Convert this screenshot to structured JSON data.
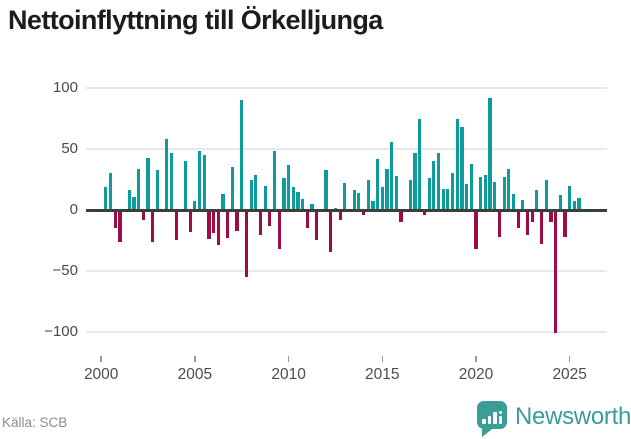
{
  "title": "Nettoinflyttning till Örkelljunga",
  "source": "Källa: SCB",
  "brand": {
    "name": "Newsworthy"
  },
  "colors": {
    "positive": "#0d9b9b",
    "negative": "#9e0c46",
    "axis": "#3d3d3d",
    "grid": "#e9e9e9",
    "brand_teal": "#3b9c98"
  },
  "chart_data": {
    "type": "bar",
    "title": "Nettoinflyttning till Örkelljunga",
    "xlabel": "",
    "ylabel": "",
    "start_quarter": "2000-Q1",
    "frequency": "quarterly",
    "ylim": [
      -110,
      105
    ],
    "grid": true,
    "y_ticks": [
      {
        "value": 100,
        "label": "100"
      },
      {
        "value": 50,
        "label": "50"
      },
      {
        "value": 0,
        "label": "0"
      },
      {
        "value": -50,
        "label": "−50"
      },
      {
        "value": -100,
        "label": "−100"
      }
    ],
    "x_ticks": [
      "2000",
      "2005",
      "2010",
      "2015",
      "2020",
      "2025"
    ],
    "values": [
      0,
      19,
      30,
      -14,
      -25,
      0,
      16,
      11,
      34,
      -7,
      43,
      -25,
      33,
      0,
      58,
      47,
      -24,
      0,
      40,
      -17,
      7,
      48,
      45,
      -23,
      -18,
      -28,
      13,
      -22,
      35,
      -16,
      90,
      -54,
      25,
      29,
      -20,
      20,
      -12,
      48,
      -31,
      26,
      37,
      19,
      15,
      9,
      -14,
      5,
      -24,
      0,
      33,
      -34,
      2,
      -7,
      22,
      0,
      16,
      14,
      -3,
      25,
      7,
      42,
      19,
      34,
      56,
      28,
      -9,
      0,
      25,
      47,
      75,
      -3,
      26,
      40,
      47,
      17,
      17,
      30,
      75,
      68,
      21,
      38,
      -31,
      27,
      29,
      92,
      23,
      -21,
      27,
      34,
      13,
      -14,
      8,
      -20,
      -9,
      16,
      -27,
      25,
      -9,
      -100,
      12,
      -21,
      20,
      7,
      10
    ]
  }
}
